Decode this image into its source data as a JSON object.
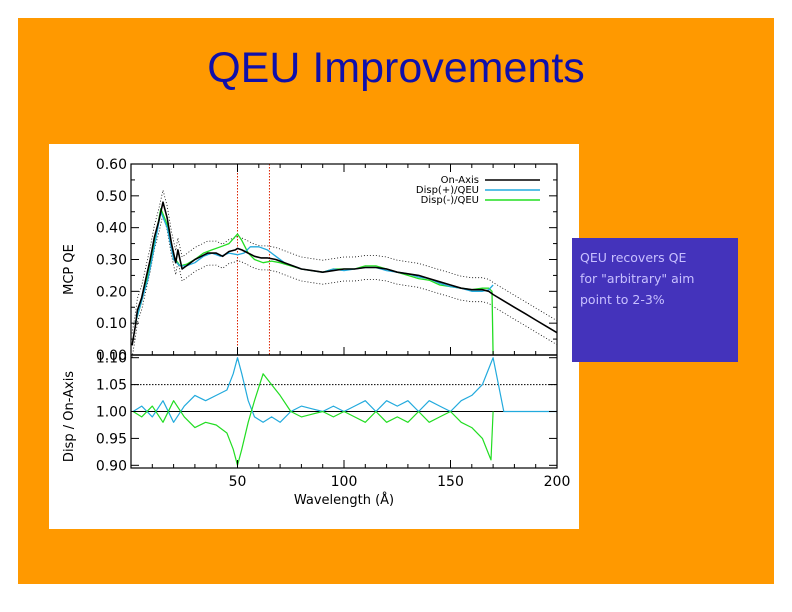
{
  "slide": {
    "title": "QEU Improvements",
    "background": "#ff9900",
    "note_lines": [
      "QEU recovers QE",
      "for \"arbitrary\" aim",
      "point to 2-3%"
    ]
  },
  "chart_data": [
    {
      "type": "line",
      "panel": "top",
      "ylabel": "MCP QE",
      "xlabel": "",
      "xlim": [
        0,
        200
      ],
      "ylim": [
        0.0,
        0.6
      ],
      "yticks": [
        0.0,
        0.1,
        0.2,
        0.3,
        0.4,
        0.5,
        0.6
      ],
      "ytick_labels": [
        "0.00",
        "0.10",
        "0.20",
        "0.30",
        "0.40",
        "0.50",
        "0.60"
      ],
      "vlines": [
        {
          "x": 50,
          "color": "#dd2200"
        },
        {
          "x": 65,
          "color": "#dd2200"
        }
      ],
      "legend": [
        "On-Axis",
        "Disp(+)/QEU",
        "Disp(-)/QEU"
      ],
      "series": [
        {
          "name": "On-Axis",
          "color": "#000000",
          "x": [
            0.5,
            2,
            3,
            5,
            7,
            9,
            11,
            13,
            15,
            17,
            19,
            21,
            22,
            24,
            26,
            28,
            30,
            33,
            36,
            40,
            43,
            46,
            49,
            50,
            52,
            55,
            58,
            61,
            64,
            68,
            72,
            76,
            80,
            85,
            90,
            95,
            100,
            105,
            110,
            115,
            120,
            125,
            130,
            135,
            140,
            145,
            150,
            155,
            160,
            165,
            168,
            170,
            175,
            180,
            185,
            190,
            195,
            200
          ],
          "y": [
            0.03,
            0.09,
            0.14,
            0.18,
            0.24,
            0.3,
            0.37,
            0.42,
            0.48,
            0.43,
            0.35,
            0.29,
            0.33,
            0.27,
            0.28,
            0.29,
            0.3,
            0.31,
            0.32,
            0.32,
            0.31,
            0.325,
            0.33,
            0.335,
            0.33,
            0.32,
            0.31,
            0.305,
            0.305,
            0.3,
            0.29,
            0.28,
            0.27,
            0.265,
            0.26,
            0.265,
            0.27,
            0.27,
            0.275,
            0.275,
            0.27,
            0.26,
            0.255,
            0.25,
            0.24,
            0.23,
            0.22,
            0.21,
            0.205,
            0.205,
            0.2,
            0.19,
            0.17,
            0.15,
            0.13,
            0.11,
            0.09,
            0.07
          ]
        },
        {
          "name": "Disp(+)/QEU",
          "color": "#22aadd",
          "x": [
            2,
            5,
            8,
            11,
            14,
            17,
            20,
            23,
            26,
            30,
            34,
            38,
            42,
            46,
            50,
            53,
            56,
            60,
            64,
            68,
            72,
            76,
            80,
            85,
            90,
            95,
            100,
            105,
            110,
            115,
            120,
            125,
            130,
            135,
            140,
            145,
            150,
            155,
            160,
            165,
            168,
            170
          ],
          "y": [
            0.1,
            0.17,
            0.24,
            0.34,
            0.45,
            0.4,
            0.3,
            0.28,
            0.28,
            0.29,
            0.31,
            0.32,
            0.31,
            0.32,
            0.315,
            0.32,
            0.34,
            0.34,
            0.33,
            0.31,
            0.29,
            0.28,
            0.27,
            0.265,
            0.26,
            0.27,
            0.265,
            0.27,
            0.275,
            0.275,
            0.265,
            0.26,
            0.255,
            0.245,
            0.24,
            0.225,
            0.215,
            0.21,
            0.2,
            0.2,
            0.205,
            0.22
          ]
        },
        {
          "name": "Disp(-)/QEU",
          "color": "#22dd22",
          "x": [
            2,
            5,
            8,
            11,
            14,
            17,
            20,
            23,
            26,
            30,
            34,
            38,
            42,
            46,
            50,
            52,
            55,
            58,
            62,
            66,
            70,
            75,
            80,
            85,
            90,
            95,
            100,
            105,
            110,
            115,
            120,
            125,
            130,
            135,
            140,
            145,
            150,
            155,
            160,
            165,
            168,
            169.5,
            170
          ],
          "y": [
            0.1,
            0.17,
            0.25,
            0.35,
            0.46,
            0.41,
            0.31,
            0.28,
            0.285,
            0.3,
            0.32,
            0.33,
            0.34,
            0.35,
            0.38,
            0.36,
            0.32,
            0.3,
            0.29,
            0.295,
            0.29,
            0.28,
            0.27,
            0.265,
            0.26,
            0.27,
            0.27,
            0.27,
            0.28,
            0.28,
            0.27,
            0.26,
            0.25,
            0.24,
            0.235,
            0.22,
            0.215,
            0.21,
            0.205,
            0.21,
            0.21,
            0.2,
            0.0
          ]
        }
      ]
    },
    {
      "type": "line",
      "panel": "bottom",
      "ylabel": "Disp / On-Axis",
      "xlabel": "Wavelength (Å)",
      "xlim": [
        0,
        200
      ],
      "ylim": [
        0.895,
        1.105
      ],
      "yticks": [
        0.9,
        0.95,
        1.0,
        1.05,
        1.1
      ],
      "ytick_labels": [
        "0.90",
        "0.95",
        "1.00",
        "1.05",
        "1.10"
      ],
      "xticks": [
        50,
        100,
        150,
        200
      ],
      "xtick_labels": [
        "50",
        "100",
        "150",
        "200"
      ],
      "hlines": [
        {
          "y": 1.0,
          "style": "solid"
        },
        {
          "y": 1.05,
          "style": "dotted"
        }
      ],
      "series": [
        {
          "name": "Disp(+)/QEU ratio",
          "color": "#22aadd",
          "x": [
            1,
            5,
            10,
            15,
            20,
            25,
            30,
            35,
            40,
            45,
            48,
            50,
            52,
            55,
            58,
            62,
            66,
            70,
            75,
            80,
            85,
            90,
            95,
            100,
            105,
            110,
            115,
            120,
            125,
            130,
            135,
            140,
            145,
            150,
            155,
            160,
            165,
            168,
            170,
            175,
            180,
            200
          ],
          "y": [
            1.0,
            1.01,
            0.99,
            1.02,
            0.98,
            1.01,
            1.03,
            1.02,
            1.03,
            1.04,
            1.07,
            1.1,
            1.07,
            1.02,
            0.99,
            0.98,
            0.99,
            0.98,
            1.0,
            1.01,
            1.005,
            1.0,
            1.01,
            1.0,
            1.01,
            1.02,
            1.0,
            1.02,
            1.01,
            1.02,
            1.0,
            1.02,
            1.01,
            1.0,
            1.02,
            1.03,
            1.05,
            1.08,
            1.1,
            1.0,
            1.0,
            1.0
          ]
        },
        {
          "name": "Disp(-)/QEU ratio",
          "color": "#22dd22",
          "x": [
            1,
            5,
            10,
            15,
            20,
            25,
            30,
            35,
            40,
            45,
            48,
            50,
            52,
            55,
            58,
            62,
            66,
            70,
            75,
            80,
            85,
            90,
            95,
            100,
            105,
            110,
            115,
            120,
            125,
            130,
            135,
            140,
            145,
            150,
            155,
            160,
            165,
            168,
            169,
            170
          ],
          "y": [
            1.0,
            0.99,
            1.01,
            0.98,
            1.02,
            0.99,
            0.97,
            0.98,
            0.975,
            0.96,
            0.93,
            0.9,
            0.93,
            0.98,
            1.02,
            1.07,
            1.05,
            1.03,
            1.0,
            0.99,
            0.995,
            1.0,
            0.99,
            1.0,
            0.99,
            0.98,
            1.0,
            0.98,
            0.99,
            0.98,
            1.0,
            0.98,
            0.99,
            1.0,
            0.98,
            0.97,
            0.95,
            0.92,
            0.91,
            1.0
          ]
        }
      ]
    }
  ]
}
